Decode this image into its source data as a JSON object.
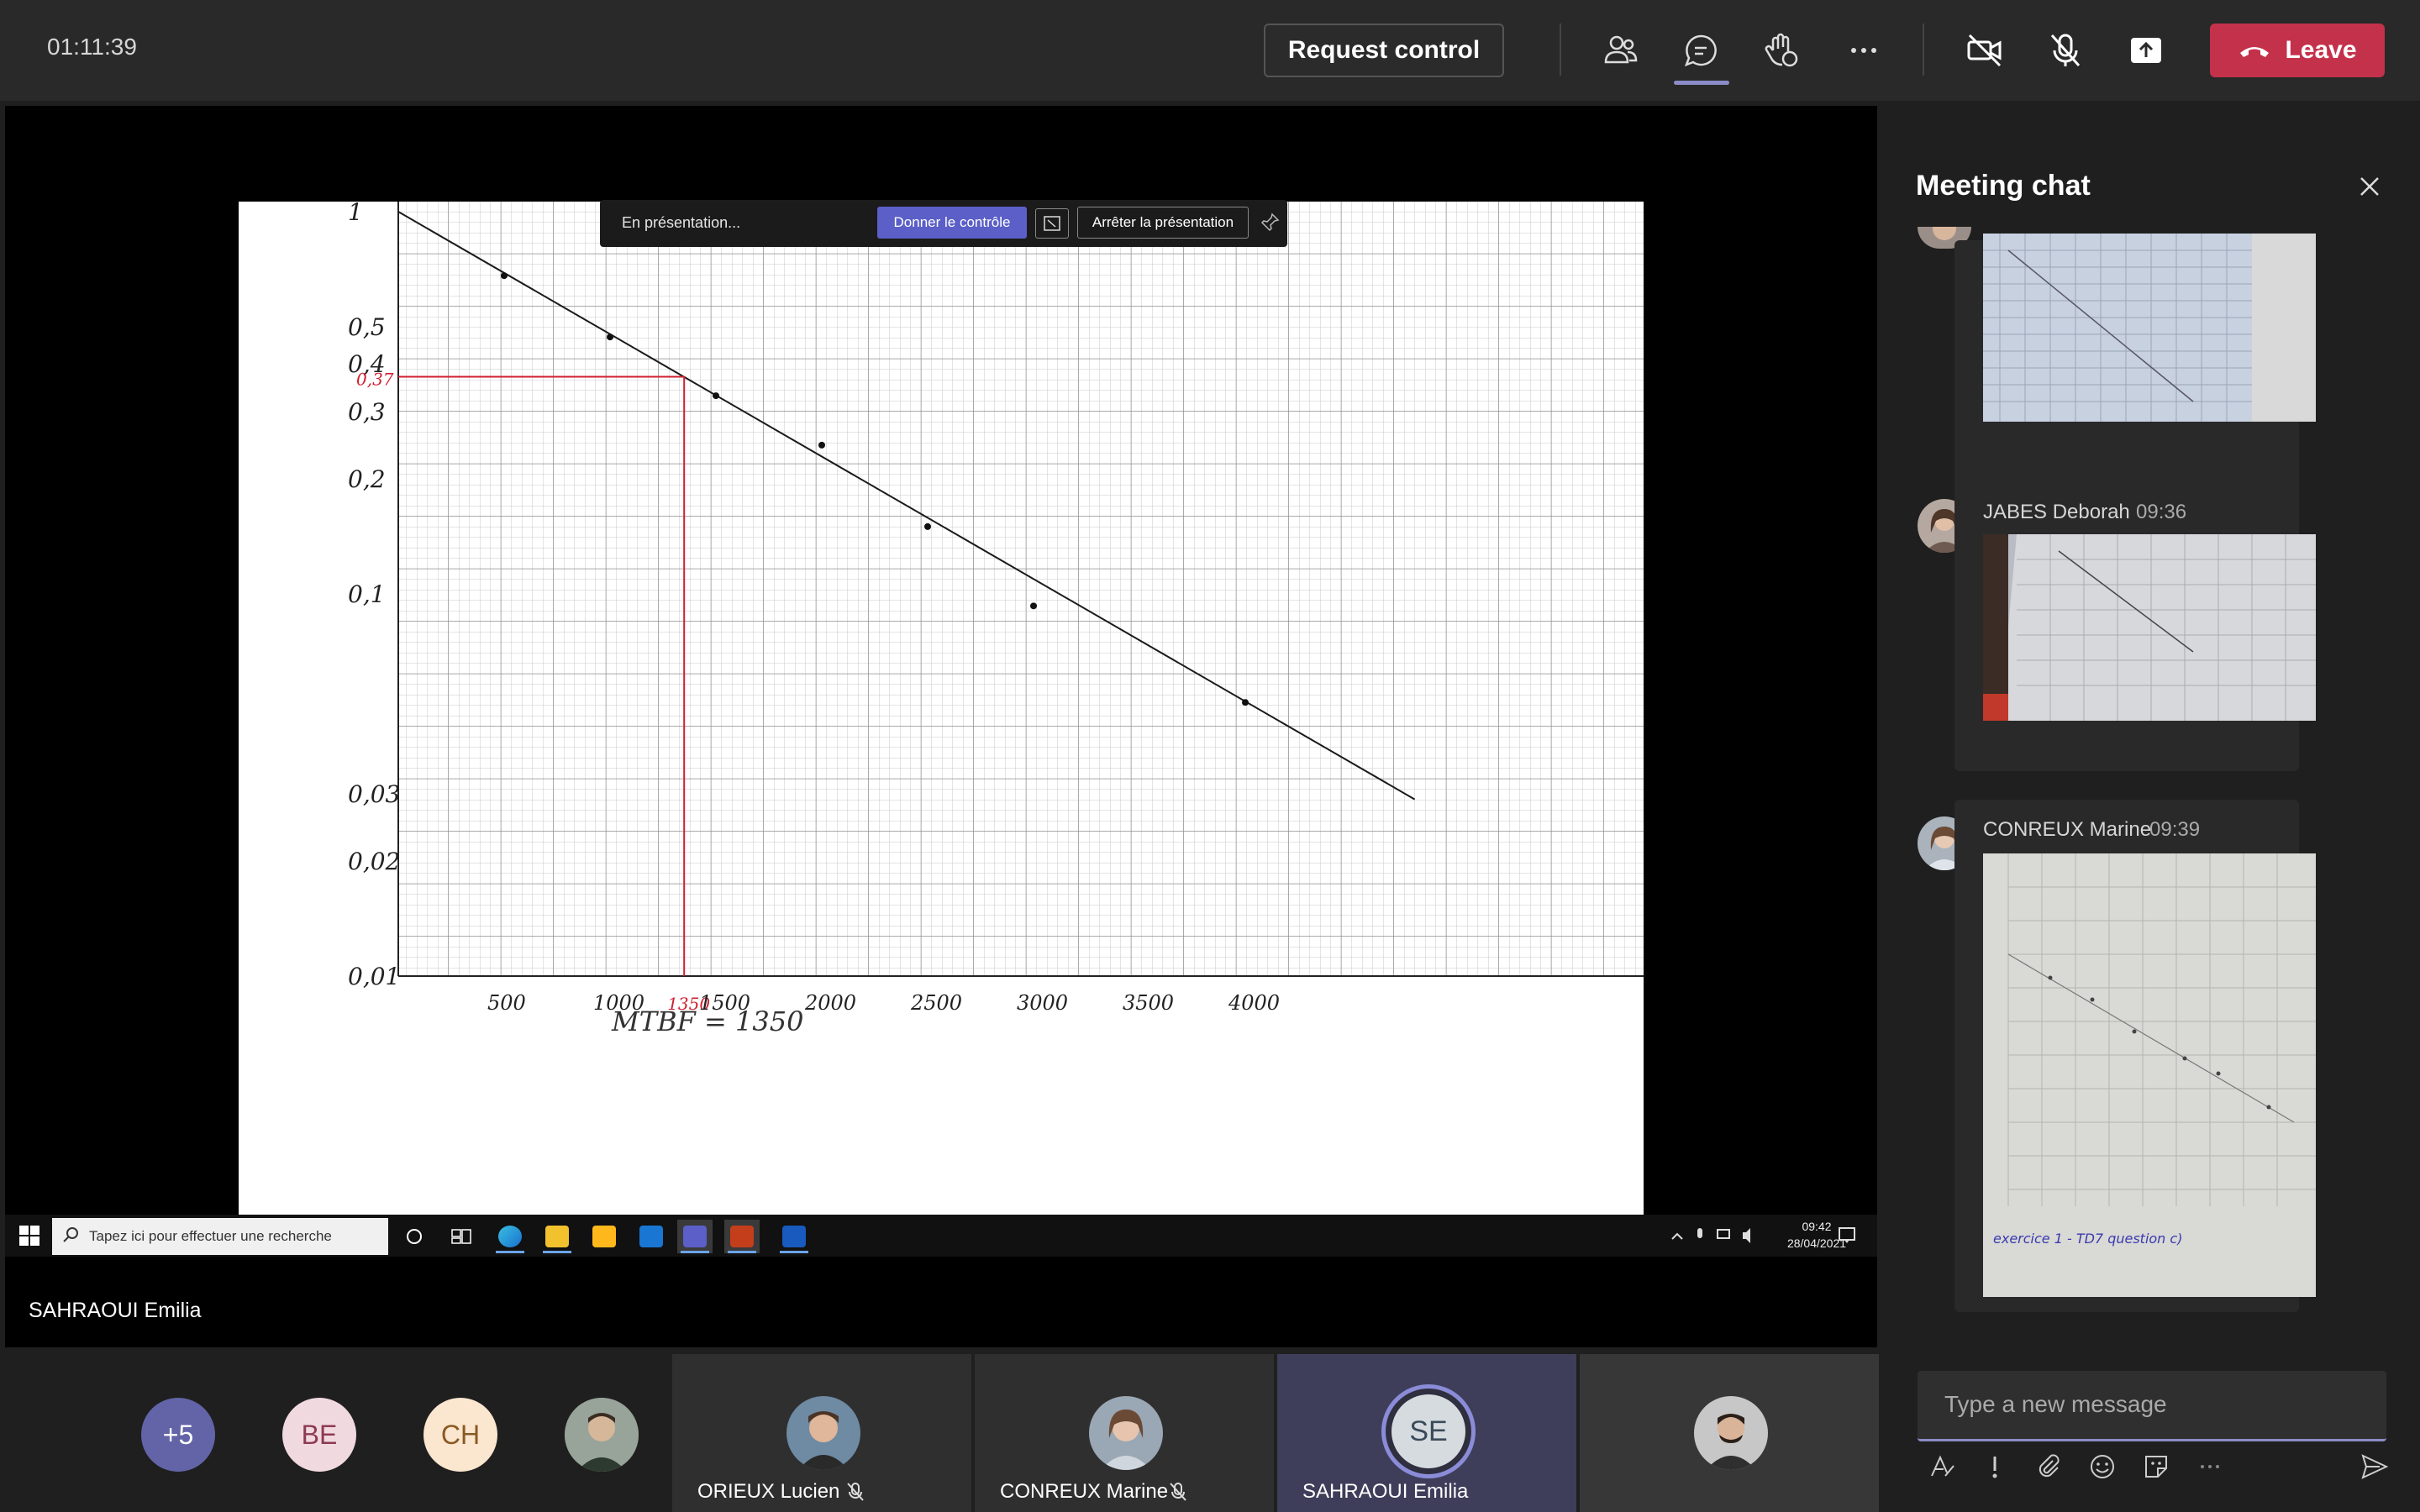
{
  "topbar": {
    "timer": "01:11:39",
    "request_control_label": "Request control",
    "leave_label": "Leave",
    "icons": [
      "people-icon",
      "chat-icon",
      "raise-hand-icon",
      "more-icon",
      "camera-off-icon",
      "mic-off-icon",
      "share-tray-icon"
    ],
    "accent_color": "#8b8cc7",
    "leave_color": "#c4314b"
  },
  "presentation_toolbar": {
    "status": "En présentation...",
    "give_control_label": "Donner le contrôle",
    "stop_label": "Arrêter la présentation"
  },
  "shared_graph": {
    "y_ticks": [
      "1",
      "0,5",
      "0,4",
      "0,37",
      "0,3",
      "0,2",
      "0,1",
      "0,03",
      "0,02",
      "0,01"
    ],
    "x_ticks": [
      "500",
      "1000",
      "1350",
      "1500",
      "2000",
      "2500",
      "3000",
      "3500",
      "4000"
    ],
    "annotation": "MTBF = 1350",
    "highlight_color": "#d11f2f",
    "points": [
      {
        "x": 500,
        "y": 0.68
      },
      {
        "x": 1000,
        "y": 0.47
      },
      {
        "x": 1500,
        "y": 0.33
      },
      {
        "x": 2000,
        "y": 0.245
      },
      {
        "x": 2500,
        "y": 0.15
      },
      {
        "x": 3000,
        "y": 0.093
      },
      {
        "x": 4000,
        "y": 0.052
      }
    ],
    "fit_line": {
      "x0": 0,
      "y0": 1,
      "x1": 4800,
      "y1": 0.029
    },
    "mtbf": {
      "x": 1350,
      "y": 0.37
    }
  },
  "windows_taskbar": {
    "search_placeholder": "Tapez ici pour effectuer une recherche",
    "time": "09:42",
    "date": "28/04/2021"
  },
  "presenter_name": "SAHRAOUI Emilia",
  "participants": {
    "overflow_count": "+5",
    "avatars": [
      {
        "initials": "BE",
        "bg": "#f1d9e0",
        "fg": "#8e3a55"
      },
      {
        "initials": "CH",
        "bg": "#fbe6cf",
        "fg": "#8a5a24"
      }
    ],
    "tiles": [
      {
        "name": "ORIEUX Lucien",
        "muted": true
      },
      {
        "name": "CONREUX Marine",
        "muted": true
      },
      {
        "name": "SAHRAOUI Emilia",
        "initials": "SE",
        "muted": false
      }
    ]
  },
  "chat": {
    "title": "Meeting chat",
    "messages": [
      {
        "sender": "",
        "time": "",
        "image": "photo-graph-1"
      },
      {
        "sender": "JABES Deborah",
        "time": "09:36",
        "image": "photo-graph-2"
      },
      {
        "sender": "CONREUX Marine",
        "time": "09:39",
        "image": "photo-graph-3"
      }
    ],
    "marine_photo_text": "exercice 1 - TD7 question c)",
    "input_placeholder": "Type a new message"
  }
}
